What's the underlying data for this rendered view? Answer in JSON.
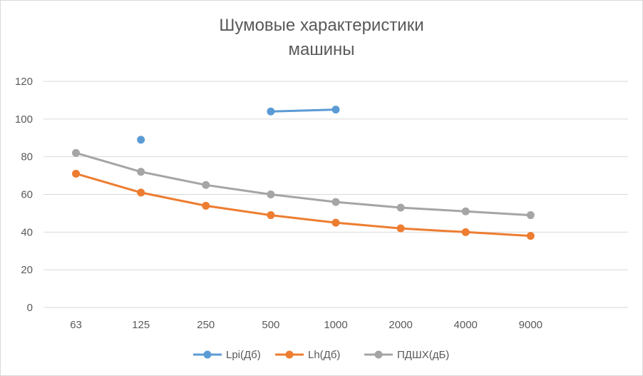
{
  "chart_data": {
    "type": "line",
    "title_line1": "Шумовые характеристики",
    "title_line2": "машины",
    "categories": [
      "63",
      "125",
      "250",
      "500",
      "1000",
      "2000",
      "4000",
      "9000"
    ],
    "ylim": [
      0,
      120
    ],
    "yticks": [
      0,
      20,
      40,
      60,
      80,
      100,
      120
    ],
    "grid": true,
    "legend_position": "bottom",
    "series": [
      {
        "name": "Lpi(Дб)",
        "color": "#5B9BD5",
        "values": [
          null,
          89,
          null,
          104,
          105,
          null,
          null,
          null
        ]
      },
      {
        "name": "Lh(Дб)",
        "color": "#ED7D31",
        "values": [
          71,
          61,
          54,
          49,
          45,
          42,
          40,
          38
        ]
      },
      {
        "name": "ПДШХ(дБ)",
        "color": "#A5A5A5",
        "values": [
          82,
          72,
          65,
          60,
          56,
          53,
          51,
          49
        ]
      }
    ]
  }
}
